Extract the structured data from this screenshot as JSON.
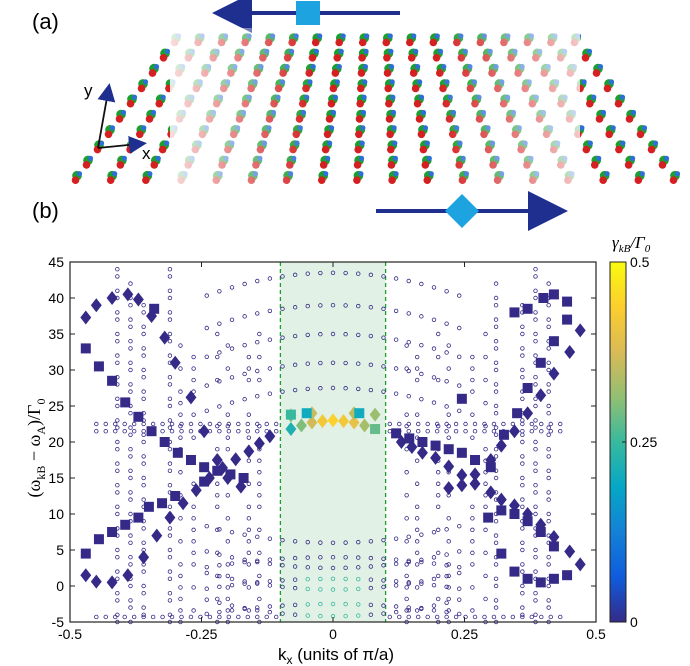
{
  "panel_a": {
    "label": "(a)",
    "axis_y": "y",
    "axis_x": "x",
    "arrow_top_direction": "left",
    "arrow_bottom_direction": "right",
    "marker_top": "square",
    "marker_bottom": "diamond",
    "lattice_rows": 10,
    "lattice_cols": 18,
    "colors": {
      "arrow": "#1f2f8f",
      "marker": "#1ca3e0",
      "red": "#d42020",
      "green": "#1d9e30",
      "blue": "#2d6fd6"
    }
  },
  "panel_b": {
    "label": "(b)"
  },
  "chart_data": {
    "type": "scatter",
    "xlabel": "k",
    "xlabel_sub": "x",
    "xlabel_units": " (units of π/a)",
    "ylabel_parts": [
      "(ω",
      "kB",
      " − ω",
      "A",
      ")/Γ",
      "0"
    ],
    "xlim": [
      -0.5,
      0.5
    ],
    "ylim": [
      -5,
      45
    ],
    "xticks": [
      "-0.5",
      "-0.25",
      "0",
      "0.25",
      "0.5"
    ],
    "xtick_values": [
      -0.5,
      -0.25,
      0,
      0.25,
      0.5
    ],
    "yticks": [
      "-5",
      "0",
      "5",
      "10",
      "15",
      "20",
      "25",
      "30",
      "35",
      "40",
      "45"
    ],
    "ytick_values": [
      -5,
      0,
      5,
      10,
      15,
      20,
      25,
      30,
      35,
      40,
      45
    ],
    "shaded_region": [
      -0.1,
      0.1
    ],
    "colorbar": {
      "label_main": "γ",
      "label_sub": "kB",
      "label_den": "/Γ",
      "label_den_sub": "0",
      "ticks": [
        "0",
        "0.25",
        "0.5"
      ],
      "tick_values": [
        0,
        0.25,
        0.5
      ],
      "range": [
        0,
        0.5
      ],
      "colors": [
        "#352a87",
        "#0f5cdd",
        "#1481d6",
        "#06a7c6",
        "#38b99e",
        "#92bf73",
        "#d9ba56",
        "#fcce2e",
        "#f9fb0e"
      ]
    },
    "series": [
      {
        "marker": "diamond",
        "points": [
          [
            -0.47,
            37.3,
            0
          ],
          [
            -0.45,
            39.0,
            0
          ],
          [
            -0.42,
            40.0,
            0
          ],
          [
            -0.39,
            40.5,
            0
          ],
          [
            -0.37,
            39.8,
            0
          ],
          [
            -0.345,
            37.5,
            0
          ],
          [
            -0.32,
            34.5,
            0
          ],
          [
            -0.3,
            31.0,
            0
          ],
          [
            -0.27,
            26.2,
            0
          ],
          [
            -0.245,
            21.5,
            0
          ],
          [
            -0.22,
            17.5,
            0
          ],
          [
            -0.2,
            15.0,
            0
          ],
          [
            -0.175,
            13.8,
            0
          ],
          [
            -0.47,
            1.5,
            0
          ],
          [
            -0.45,
            0.6,
            0
          ],
          [
            -0.42,
            0.5,
            0
          ],
          [
            -0.39,
            1.5,
            0
          ],
          [
            -0.36,
            4.0,
            0
          ],
          [
            -0.335,
            7.0,
            0
          ],
          [
            -0.31,
            9.5,
            0
          ],
          [
            -0.285,
            11.5,
            0
          ],
          [
            -0.26,
            13.3,
            0
          ],
          [
            -0.235,
            15.0,
            0
          ],
          [
            -0.21,
            16.4,
            0
          ],
          [
            -0.185,
            17.6,
            0
          ],
          [
            -0.16,
            18.7,
            0
          ],
          [
            -0.14,
            19.8,
            0
          ],
          [
            -0.12,
            20.8,
            0
          ],
          [
            -0.08,
            21.8,
            0.22
          ],
          [
            -0.06,
            22.3,
            0.3
          ],
          [
            -0.04,
            22.7,
            0.37
          ],
          [
            -0.02,
            22.9,
            0.42
          ],
          [
            0.0,
            23.0,
            0.44
          ],
          [
            0.02,
            22.9,
            0.42
          ],
          [
            0.04,
            22.7,
            0.4
          ],
          [
            0.06,
            22.3,
            0.33
          ],
          [
            0.47,
            35.5,
            0
          ],
          [
            0.45,
            32.5,
            0
          ],
          [
            0.42,
            29.5,
            0
          ],
          [
            0.395,
            26.5,
            0
          ],
          [
            0.37,
            24.0,
            0
          ],
          [
            0.345,
            21.5,
            0
          ],
          [
            0.32,
            19.5,
            0
          ],
          [
            0.3,
            17.5,
            0
          ],
          [
            0.27,
            15.5,
            0
          ],
          [
            0.245,
            14.0,
            0
          ],
          [
            0.22,
            13.6,
            0
          ],
          [
            0.47,
            3.0,
            0
          ],
          [
            0.45,
            4.8,
            0
          ],
          [
            0.42,
            6.8,
            0
          ],
          [
            0.395,
            8.5,
            0
          ],
          [
            0.37,
            10.0,
            0
          ],
          [
            0.345,
            11.2,
            0
          ],
          [
            0.32,
            12.0,
            0
          ],
          [
            0.3,
            13.0,
            0
          ],
          [
            0.27,
            14.2,
            0
          ],
          [
            0.245,
            15.4,
            0
          ],
          [
            0.22,
            16.6,
            0
          ],
          [
            0.195,
            17.8,
            0
          ],
          [
            0.17,
            18.5,
            0
          ],
          [
            0.15,
            19.3,
            0
          ],
          [
            0.13,
            20.0,
            0
          ],
          [
            -0.08,
            23.7,
            0.3
          ],
          [
            -0.04,
            24.0,
            0.36
          ],
          [
            0.04,
            24.0,
            0.35
          ],
          [
            0.08,
            23.8,
            0.32
          ]
        ]
      },
      {
        "marker": "square",
        "points": [
          [
            -0.47,
            33.0,
            0
          ],
          [
            -0.445,
            30.5,
            0
          ],
          [
            -0.42,
            28.5,
            0
          ],
          [
            -0.395,
            25.5,
            0
          ],
          [
            -0.37,
            23.5,
            0
          ],
          [
            -0.345,
            21.5,
            0
          ],
          [
            -0.32,
            20.0,
            0
          ],
          [
            -0.295,
            18.5,
            0
          ],
          [
            -0.27,
            17.5,
            0
          ],
          [
            -0.245,
            16.5,
            0
          ],
          [
            -0.22,
            16.0,
            0
          ],
          [
            -0.195,
            15.5,
            0
          ],
          [
            -0.17,
            15.0,
            0
          ],
          [
            -0.47,
            4.5,
            0
          ],
          [
            -0.445,
            6.5,
            0
          ],
          [
            -0.42,
            7.5,
            0
          ],
          [
            -0.395,
            8.5,
            0
          ],
          [
            -0.37,
            9.5,
            0
          ],
          [
            -0.35,
            11.0,
            0
          ],
          [
            -0.325,
            11.5,
            0
          ],
          [
            -0.3,
            12.5,
            0
          ],
          [
            -0.245,
            14.5,
            0
          ],
          [
            -0.34,
            38.5,
            0
          ],
          [
            -0.08,
            23.8,
            0.25
          ],
          [
            -0.05,
            24.0,
            0.2
          ],
          [
            0.05,
            24.0,
            0.2
          ],
          [
            0.08,
            21.8,
            0.28
          ],
          [
            0.12,
            21.2,
            0
          ],
          [
            0.145,
            20.5,
            0
          ],
          [
            0.17,
            20.0,
            0
          ],
          [
            0.195,
            19.5,
            0
          ],
          [
            0.22,
            19.0,
            0
          ],
          [
            0.245,
            18.5,
            0
          ],
          [
            0.27,
            17.5,
            0
          ],
          [
            0.3,
            16.5,
            0
          ],
          [
            0.325,
            21.0,
            0
          ],
          [
            0.35,
            24.0,
            0
          ],
          [
            0.37,
            27.5,
            0
          ],
          [
            0.395,
            31.0,
            0
          ],
          [
            0.42,
            34.0,
            0
          ],
          [
            0.445,
            37.0,
            0
          ],
          [
            0.4,
            40.0,
            0
          ],
          [
            0.42,
            40.5,
            0
          ],
          [
            0.445,
            39.5,
            0
          ],
          [
            0.37,
            38.5,
            0
          ],
          [
            0.345,
            38.0,
            0
          ],
          [
            0.245,
            26.0,
            0
          ],
          [
            0.295,
            9.5,
            0
          ],
          [
            0.32,
            10.5,
            0
          ],
          [
            0.345,
            10.0,
            0
          ],
          [
            0.37,
            9.0,
            0
          ],
          [
            0.395,
            7.5,
            0
          ],
          [
            0.42,
            5.5,
            0
          ],
          [
            0.445,
            1.5,
            0
          ],
          [
            0.42,
            1.0,
            0
          ],
          [
            0.395,
            0.5,
            0
          ],
          [
            0.37,
            1.0,
            0
          ],
          [
            0.345,
            2.0,
            0
          ],
          [
            0.32,
            4.5,
            0
          ]
        ]
      }
    ]
  }
}
